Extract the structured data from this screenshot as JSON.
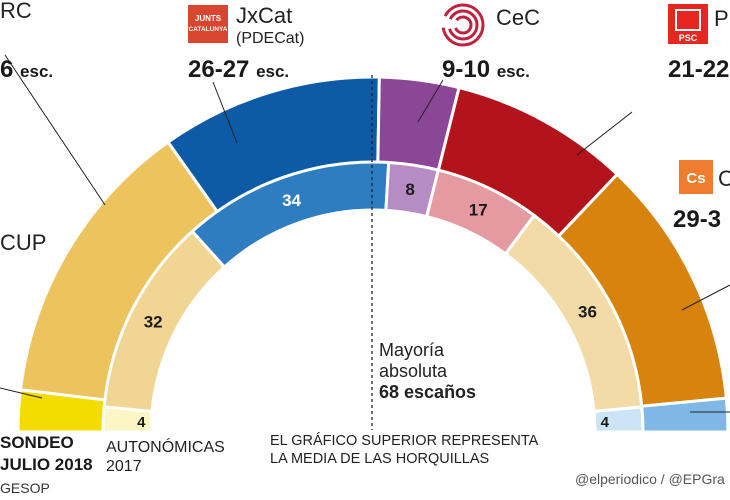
{
  "chart_data": {
    "type": "semicircle-parliament",
    "outer_ring": {
      "caption_line1": "SONDEO",
      "caption_line2": "JULIO 2018",
      "caption_line3": "GESOP",
      "note_line1": "EL GRÁFICO SUPERIOR REPRESENTA",
      "note_line2": "LA MEDIA DE LAS HORQUILLAS",
      "segments": [
        {
          "party": "CUP",
          "seats": 5,
          "color": "#f5dc00"
        },
        {
          "party": "ERC",
          "seats": 35,
          "color": "#ecc35c"
        },
        {
          "party": "JxCat",
          "seats": 26.5,
          "color": "#0d5aa7"
        },
        {
          "party": "CeC",
          "seats": 9.5,
          "color": "#8a4796"
        },
        {
          "party": "PSC",
          "seats": 21.5,
          "color": "#b3141b"
        },
        {
          "party": "Cs",
          "seats": 30,
          "color": "#d9830f"
        },
        {
          "party": "PP",
          "seats": 4,
          "color": "#7fb8e6"
        }
      ]
    },
    "inner_ring": {
      "caption_line1": "AUTONÓMICAS",
      "caption_line2": "2017",
      "segments": [
        {
          "party": "CUP",
          "seats": 4,
          "label": "4",
          "color": "#fbf6c4"
        },
        {
          "party": "ERC",
          "seats": 32,
          "label": "32",
          "color": "#f1d592"
        },
        {
          "party": "JxCat",
          "seats": 34,
          "label": "34",
          "color": "#2f7dc1"
        },
        {
          "party": "CeC",
          "seats": 8,
          "label": "8",
          "color": "#b58cc4"
        },
        {
          "party": "PSC",
          "seats": 17,
          "label": "17",
          "color": "#e49aa0"
        },
        {
          "party": "Cs",
          "seats": 36,
          "label": "36",
          "color": "#f2dba6"
        },
        {
          "party": "PP",
          "seats": 4,
          "label": "4",
          "color": "#cce5f6"
        }
      ]
    },
    "total_seats": 135,
    "majority": {
      "line1": "Mayoría",
      "line2": "absoluta",
      "line3": "68 escaños"
    },
    "party_labels": [
      {
        "key": "erc",
        "name": "RC",
        "seats": "6",
        "esc": "esc."
      },
      {
        "key": "jxcat",
        "name": "JxCat",
        "sub": "(PDECat)",
        "seats": "26-27",
        "esc": "esc.",
        "logo_text": "JUNTS PER CATALUNYA"
      },
      {
        "key": "cec",
        "name": "CeC",
        "seats": "9-10",
        "esc": "esc."
      },
      {
        "key": "psc",
        "name": "P",
        "seats": "21-22",
        "logo_text": "PSC"
      },
      {
        "key": "cs",
        "name": "C",
        "seats": "29-3",
        "logo_text": "Cs"
      },
      {
        "key": "cup",
        "name": "CUP"
      }
    ]
  },
  "footer": {
    "credit": "@elperiodico / @EPGra"
  }
}
